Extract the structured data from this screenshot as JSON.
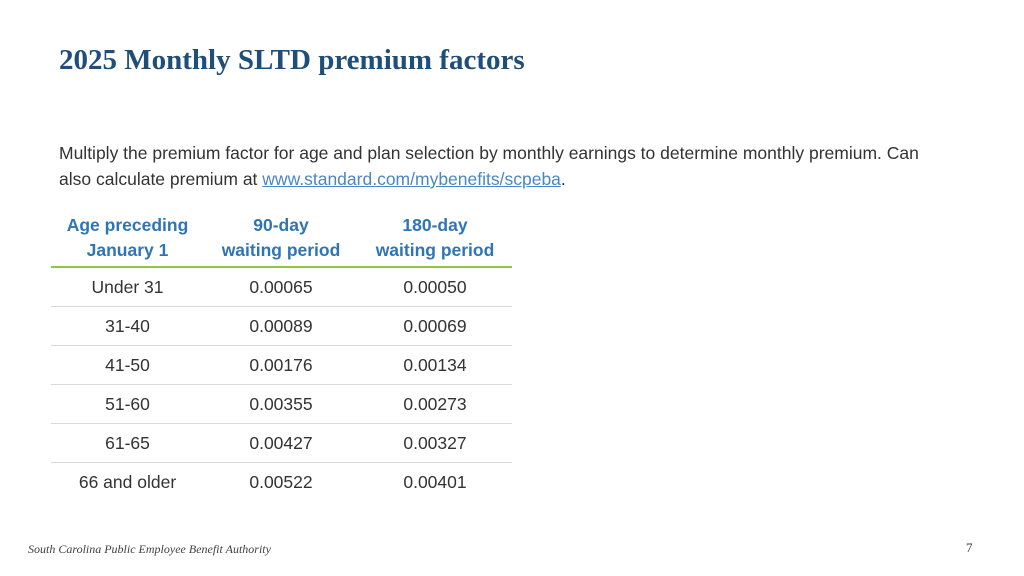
{
  "title": "2025 Monthly SLTD premium factors",
  "intro": {
    "text": "Multiply the premium factor for age and plan selection by monthly earnings to determine monthly premium. Can also calculate premium at ",
    "link": "www.standard.com/mybenefits/scpeba",
    "end": "."
  },
  "table": {
    "headers": [
      [
        "Age preceding",
        "January 1"
      ],
      [
        "90-day",
        "waiting period"
      ],
      [
        "180-day",
        "waiting period"
      ]
    ],
    "rows": [
      [
        "Under 31",
        "0.00065",
        "0.00050"
      ],
      [
        "31-40",
        "0.00089",
        "0.00069"
      ],
      [
        "41-50",
        "0.00176",
        "0.00134"
      ],
      [
        "51-60",
        "0.00355",
        "0.00273"
      ],
      [
        "61-65",
        "0.00427",
        "0.00327"
      ],
      [
        "66 and older",
        "0.00522",
        "0.00401"
      ]
    ]
  },
  "footer": "South Carolina Public Employee Benefit Authority",
  "page_number": "7",
  "colors": {
    "title": "#1f4e79",
    "header_text": "#2e75b6",
    "header_rule": "#8dc63f",
    "link": "#4a86c5"
  }
}
